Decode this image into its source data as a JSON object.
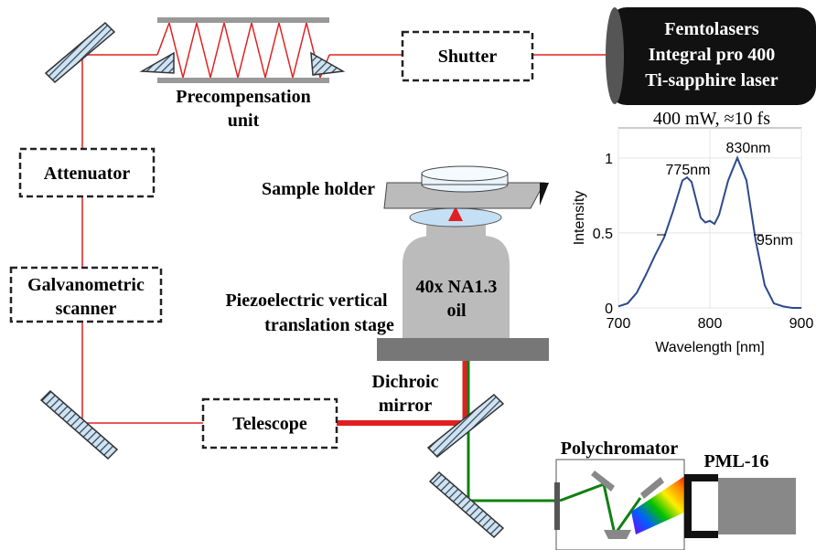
{
  "labels": {
    "laser": [
      "Femtolasers",
      "Integral pro 400",
      "Ti-sapphire laser"
    ],
    "laser_spec": "400 mW, ≈10 fs",
    "shutter": "Shutter",
    "precompensation": [
      "Precompensation",
      "unit"
    ],
    "attenuator": "Attenuator",
    "galvo": [
      "Galvanometric",
      "scanner"
    ],
    "telescope": "Telescope",
    "sample_holder": "Sample holder",
    "objective": [
      "40x NA1.3",
      "oil"
    ],
    "stage": [
      "Piezoelectric vertical",
      "translation stage"
    ],
    "dichroic": [
      "Dichroic",
      "mirror"
    ],
    "polychromator": "Polychromator",
    "detector": "PML-16"
  },
  "chart_data": {
    "type": "line",
    "xlabel": "Wavelength [nm]",
    "ylabel": "Intensity",
    "x": [
      700,
      710,
      720,
      730,
      740,
      750,
      760,
      770,
      775,
      780,
      790,
      795,
      800,
      805,
      810,
      820,
      830,
      840,
      850,
      860,
      870,
      880,
      890,
      900
    ],
    "values": [
      0.01,
      0.03,
      0.1,
      0.22,
      0.35,
      0.47,
      0.65,
      0.85,
      0.87,
      0.84,
      0.6,
      0.57,
      0.58,
      0.56,
      0.62,
      0.85,
      1.0,
      0.85,
      0.45,
      0.15,
      0.03,
      0.01,
      0,
      0
    ],
    "color": "#2c4a8c",
    "xlim": [
      700,
      900
    ],
    "ylim": [
      0,
      1.2
    ],
    "xticks": [
      700,
      800,
      900
    ],
    "yticks": [
      0,
      0.5,
      1
    ],
    "grid": true,
    "annotations": [
      "775nm",
      "830nm",
      "95nm"
    ]
  }
}
